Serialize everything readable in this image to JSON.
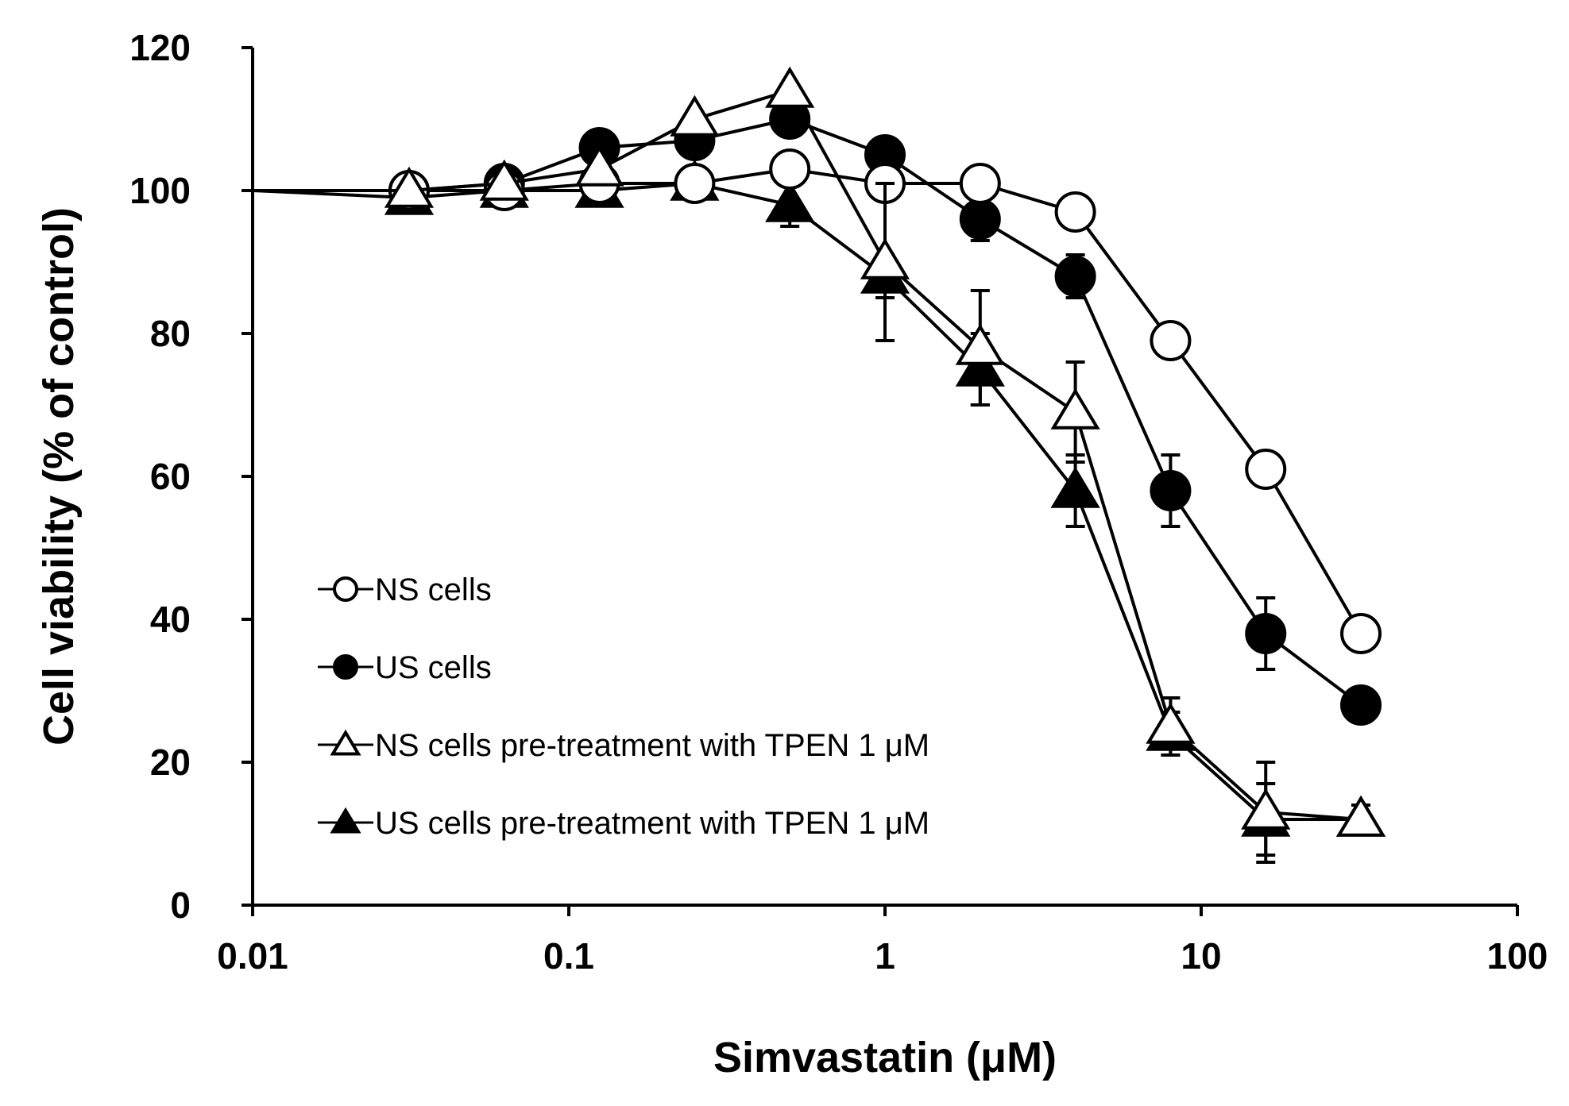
{
  "chart_data": {
    "type": "line",
    "title": "",
    "xlabel": "Simvastatin (μM)",
    "ylabel": "Cell viability (% of control)",
    "xscale": "log",
    "xlim": [
      0.01,
      100
    ],
    "ylim": [
      0,
      120
    ],
    "xticks": [
      0.01,
      0.1,
      1,
      10,
      100
    ],
    "xtick_labels": [
      "0.01",
      "0.1",
      "1",
      "10",
      "100"
    ],
    "yticks": [
      0,
      20,
      40,
      60,
      80,
      100,
      120
    ],
    "ytick_labels": [
      "0",
      "20",
      "40",
      "60",
      "80",
      "100",
      "120"
    ],
    "grid": false,
    "legend_position": "lower-left",
    "x": [
      0.03125,
      0.0625,
      0.125,
      0.25,
      0.5,
      1,
      2,
      4,
      8,
      16,
      32
    ],
    "series": [
      {
        "name": "NS cells",
        "marker": "circle",
        "filled": false,
        "start": [
          0.01,
          100
        ],
        "values": [
          100,
          100,
          101,
          101,
          103,
          101,
          101,
          97,
          79,
          61,
          38
        ],
        "err": [
          1,
          1,
          1,
          1,
          1.5,
          2,
          1,
          1,
          1.5,
          1.5,
          1.5
        ]
      },
      {
        "name": "US cells",
        "marker": "circle",
        "filled": true,
        "start": [
          0.01,
          100
        ],
        "values": [
          100,
          101,
          106,
          107,
          110,
          105,
          96,
          88,
          58,
          38,
          28
        ],
        "err": [
          1,
          1,
          1,
          1,
          1,
          1,
          3,
          3,
          5,
          5,
          1.5
        ]
      },
      {
        "name": "NS cells pre-treatment with TPEN 1 μM",
        "marker": "triangle",
        "filled": false,
        "start": [
          0.01,
          100
        ],
        "values": [
          100,
          101,
          103,
          110,
          114,
          90,
          78,
          69,
          25,
          13,
          12
        ],
        "err": [
          1,
          1,
          1,
          1,
          1,
          11,
          8,
          7,
          4,
          7,
          2
        ]
      },
      {
        "name": "US cells pre-treatment with TPEN 1 μM",
        "marker": "triangle",
        "filled": true,
        "start": [
          0.01,
          100
        ],
        "values": [
          99,
          100,
          100,
          101,
          98,
          88,
          75,
          58,
          24,
          12,
          12
        ],
        "err": [
          1,
          1,
          1,
          1,
          3,
          3,
          5,
          5,
          3,
          5,
          2
        ]
      }
    ]
  }
}
